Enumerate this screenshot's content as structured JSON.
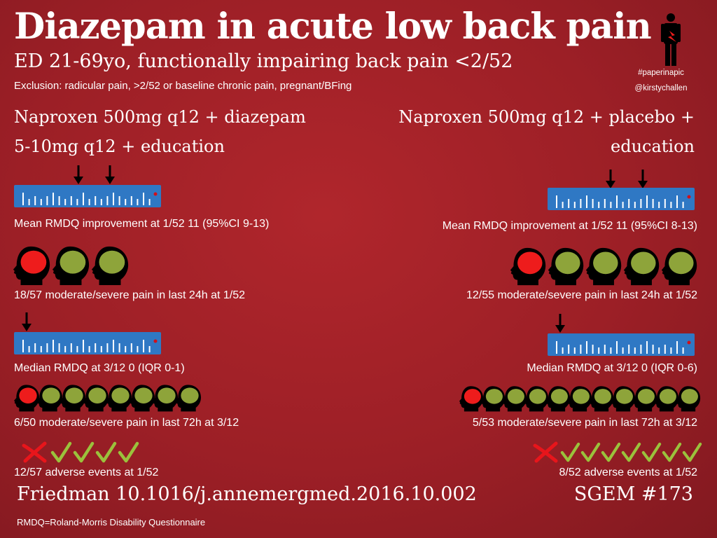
{
  "header": {
    "title": "Diazepam in acute low back pain",
    "subtitle": "ED 21-69yo, functionally impairing back pain <2/52",
    "exclusion": "Exclusion: radicular pain, >2/52 or baseline chronic pain, pregnant/BFing",
    "hashtag": "#paperinapic",
    "handle": "@kirstychallen"
  },
  "arms": {
    "left": {
      "heading_line1": "Naproxen 500mg q12 + diazepam",
      "heading_line2": "5-10mg q12 + education",
      "rmdq_improvement": "Mean RMDQ improvement at 1/52 11 (95%CI 9-13)",
      "pain_1wk": "18/57 moderate/severe pain in last 24h at 1/52",
      "rmdq_median": "Median RMDQ at 3/12 0 (IQR 0-1)",
      "pain_3mo": "6/50 moderate/severe pain in last 72h at 3/12",
      "adverse": "12/57 adverse events at 1/52"
    },
    "right": {
      "heading_line1": "Naproxen 500mg q12 + placebo +",
      "heading_line2": "education",
      "rmdq_improvement": "Mean RMDQ improvement at 1/52 11 (95%CI 8-13)",
      "pain_1wk": "12/55 moderate/severe pain in last 24h at 1/52",
      "rmdq_median": "Median RMDQ at 3/12 0 (IQR 0-6)",
      "pain_3mo": "5/53 moderate/severe pain in last 72h at 3/12",
      "adverse": "8/52 adverse events at 1/52"
    }
  },
  "footer": {
    "citation": "Friedman 10.1016/j.annemergmed.2016.10.002",
    "sgem": "SGEM #173",
    "footnote": "RMDQ=Roland-Morris Disability Questionnaire"
  },
  "colors": {
    "background": "#9c1f26",
    "ruler": "#2f78c4",
    "pain_head": "#ee1c1c",
    "no_pain_head": "#8ea43a",
    "tick_green": "#9bc13c",
    "cross_red": "#e8151b"
  },
  "icons": {
    "person": "person-lightning-icon",
    "ruler": "ruler-icon",
    "arrow": "down-arrow-icon",
    "head": "head-icon",
    "check": "check-icon",
    "cross": "cross-icon"
  }
}
